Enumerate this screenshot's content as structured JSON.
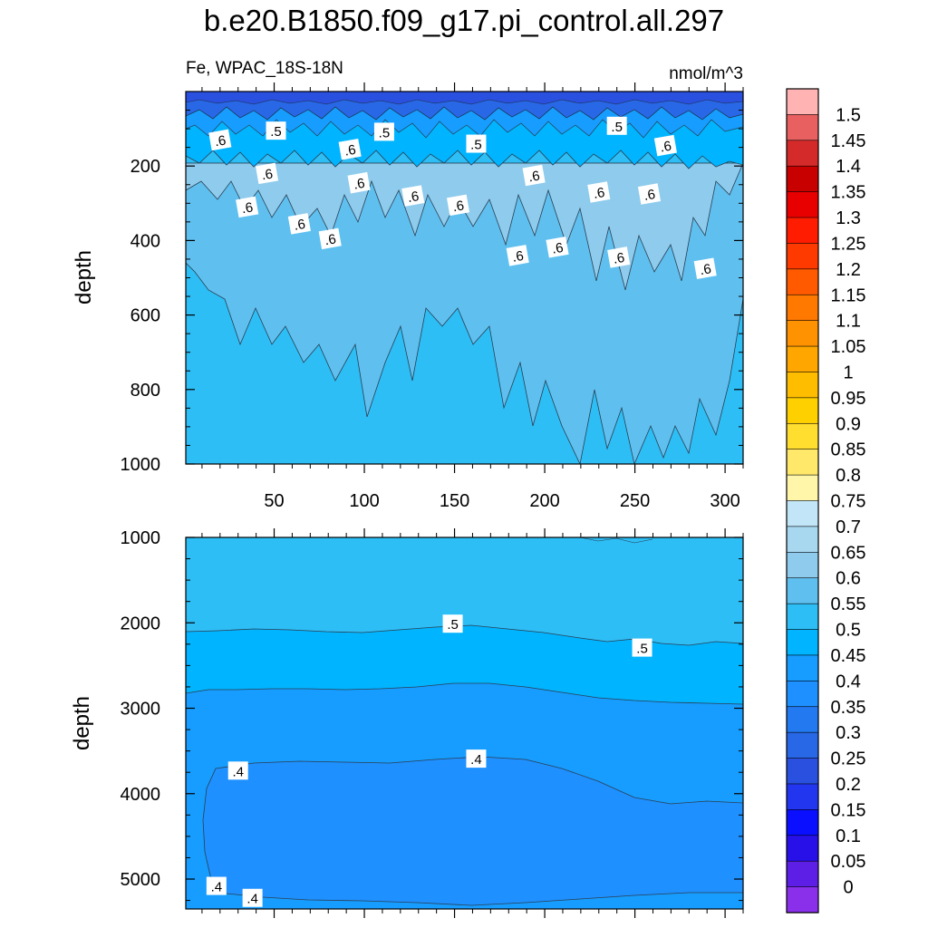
{
  "figure": {
    "title": "b.e20.B1850.f09_g17.pi_control.all.297",
    "variable": "Fe, WPAC_18S-18N",
    "units": "nmol/m^3"
  },
  "chart_data": [
    {
      "type": "heatmap",
      "panel": "upper",
      "ylabel": "depth",
      "xlabel": "",
      "xlim": [
        1,
        310
      ],
      "ylim": [
        1000,
        0
      ],
      "x_ticks": [
        50,
        100,
        150,
        200,
        250,
        300
      ],
      "y_ticks": [
        200,
        400,
        600,
        800,
        1000
      ],
      "bands": [
        {
          "level_from": 0.25,
          "level_to": 0.35,
          "depths": [
            0,
            15,
            30,
            45,
            60,
            70,
            80,
            90
          ]
        },
        {
          "level_from": 0.45,
          "level_to": 0.55,
          "depths": [
            90,
            120,
            150,
            180
          ]
        },
        {
          "level_from": 0.55,
          "level_to": 0.65,
          "depths": [
            180,
            400,
            600,
            800
          ]
        },
        {
          "level_from": 0.5,
          "level_to": 0.55,
          "depths": [
            800,
            1000
          ]
        }
      ],
      "contour_labels": [
        {
          "text": ".6",
          "x": 20,
          "depth": 130
        },
        {
          "text": ".5",
          "x": 51,
          "depth": 105
        },
        {
          "text": ".5",
          "x": 111,
          "depth": 108
        },
        {
          "text": ".6",
          "x": 92,
          "depth": 155
        },
        {
          "text": ".5",
          "x": 162,
          "depth": 140
        },
        {
          "text": ".5",
          "x": 240,
          "depth": 92
        },
        {
          "text": ".6",
          "x": 267,
          "depth": 145
        },
        {
          "text": ".6",
          "x": 46,
          "depth": 220
        },
        {
          "text": ".6",
          "x": 97,
          "depth": 245
        },
        {
          "text": ".6",
          "x": 127,
          "depth": 280
        },
        {
          "text": ".6",
          "x": 35,
          "depth": 310
        },
        {
          "text": ".6",
          "x": 152,
          "depth": 305
        },
        {
          "text": ".6",
          "x": 194,
          "depth": 225
        },
        {
          "text": ".6",
          "x": 230,
          "depth": 270
        },
        {
          "text": ".6",
          "x": 258,
          "depth": 275
        },
        {
          "text": ".6",
          "x": 64,
          "depth": 355
        },
        {
          "text": ".6",
          "x": 81,
          "depth": 395
        },
        {
          "text": ".6",
          "x": 185,
          "depth": 440
        },
        {
          "text": ".6",
          "x": 207,
          "depth": 418
        },
        {
          "text": ".6",
          "x": 241,
          "depth": 445
        },
        {
          "text": ".6",
          "x": 289,
          "depth": 475
        }
      ]
    },
    {
      "type": "heatmap",
      "panel": "lower",
      "ylabel": "depth",
      "xlabel": "",
      "xlim": [
        1,
        310
      ],
      "ylim": [
        5350,
        1000
      ],
      "y_ticks": [
        1000,
        2000,
        3000,
        4000,
        5000
      ],
      "bands": [
        {
          "level_from": 0.5,
          "level_to": 0.55,
          "depths": [
            1000,
            2150
          ]
        },
        {
          "level_from": 0.45,
          "level_to": 0.5,
          "depths": [
            2150,
            2850
          ]
        },
        {
          "level_from": 0.4,
          "level_to": 0.45,
          "depths": [
            2850,
            5350
          ]
        },
        {
          "level_from": 0.35,
          "level_to": 0.4,
          "depths": [
            3700,
            5250
          ]
        }
      ],
      "contour_labels": [
        {
          "text": ".5",
          "x": 149,
          "depth": 2010
        },
        {
          "text": ".5",
          "x": 254,
          "depth": 2290
        },
        {
          "text": ".4",
          "x": 30,
          "depth": 3730
        },
        {
          "text": ".4",
          "x": 162,
          "depth": 3590
        },
        {
          "text": ".4",
          "x": 18,
          "depth": 5080
        },
        {
          "text": ".4",
          "x": 38,
          "depth": 5220
        }
      ]
    }
  ],
  "colorbar": {
    "labels": [
      "1.5",
      "1.45",
      "1.4",
      "1.35",
      "1.3",
      "1.25",
      "1.2",
      "1.15",
      "1.1",
      "1.05",
      "1",
      "0.95",
      "0.9",
      "0.85",
      "0.8",
      "0.75",
      "0.7",
      "0.65",
      "0.6",
      "0.55",
      "0.5",
      "0.45",
      "0.4",
      "0.35",
      "0.3",
      "0.25",
      "0.2",
      "0.15",
      "0.1",
      "0.05",
      "0"
    ],
    "colors": [
      "#ffb3b3",
      "#e86060",
      "#d42a2a",
      "#c80000",
      "#e80000",
      "#ff1c00",
      "#ff3a00",
      "#ff5a00",
      "#ff7800",
      "#ff9200",
      "#ffa700",
      "#ffbd00",
      "#ffd000",
      "#ffde30",
      "#ffe86a",
      "#fff6aa",
      "#c2e6f8",
      "#a8d8f0",
      "#8ecbed",
      "#5fc0f0",
      "#2dbef6",
      "#00b4ff",
      "#169dff",
      "#1e90ff",
      "#2279f0",
      "#2868e6",
      "#2a50e0",
      "#2236f0",
      "#0a10ff",
      "#2810e8",
      "#5d1ee6",
      "#8a30ea"
    ]
  }
}
